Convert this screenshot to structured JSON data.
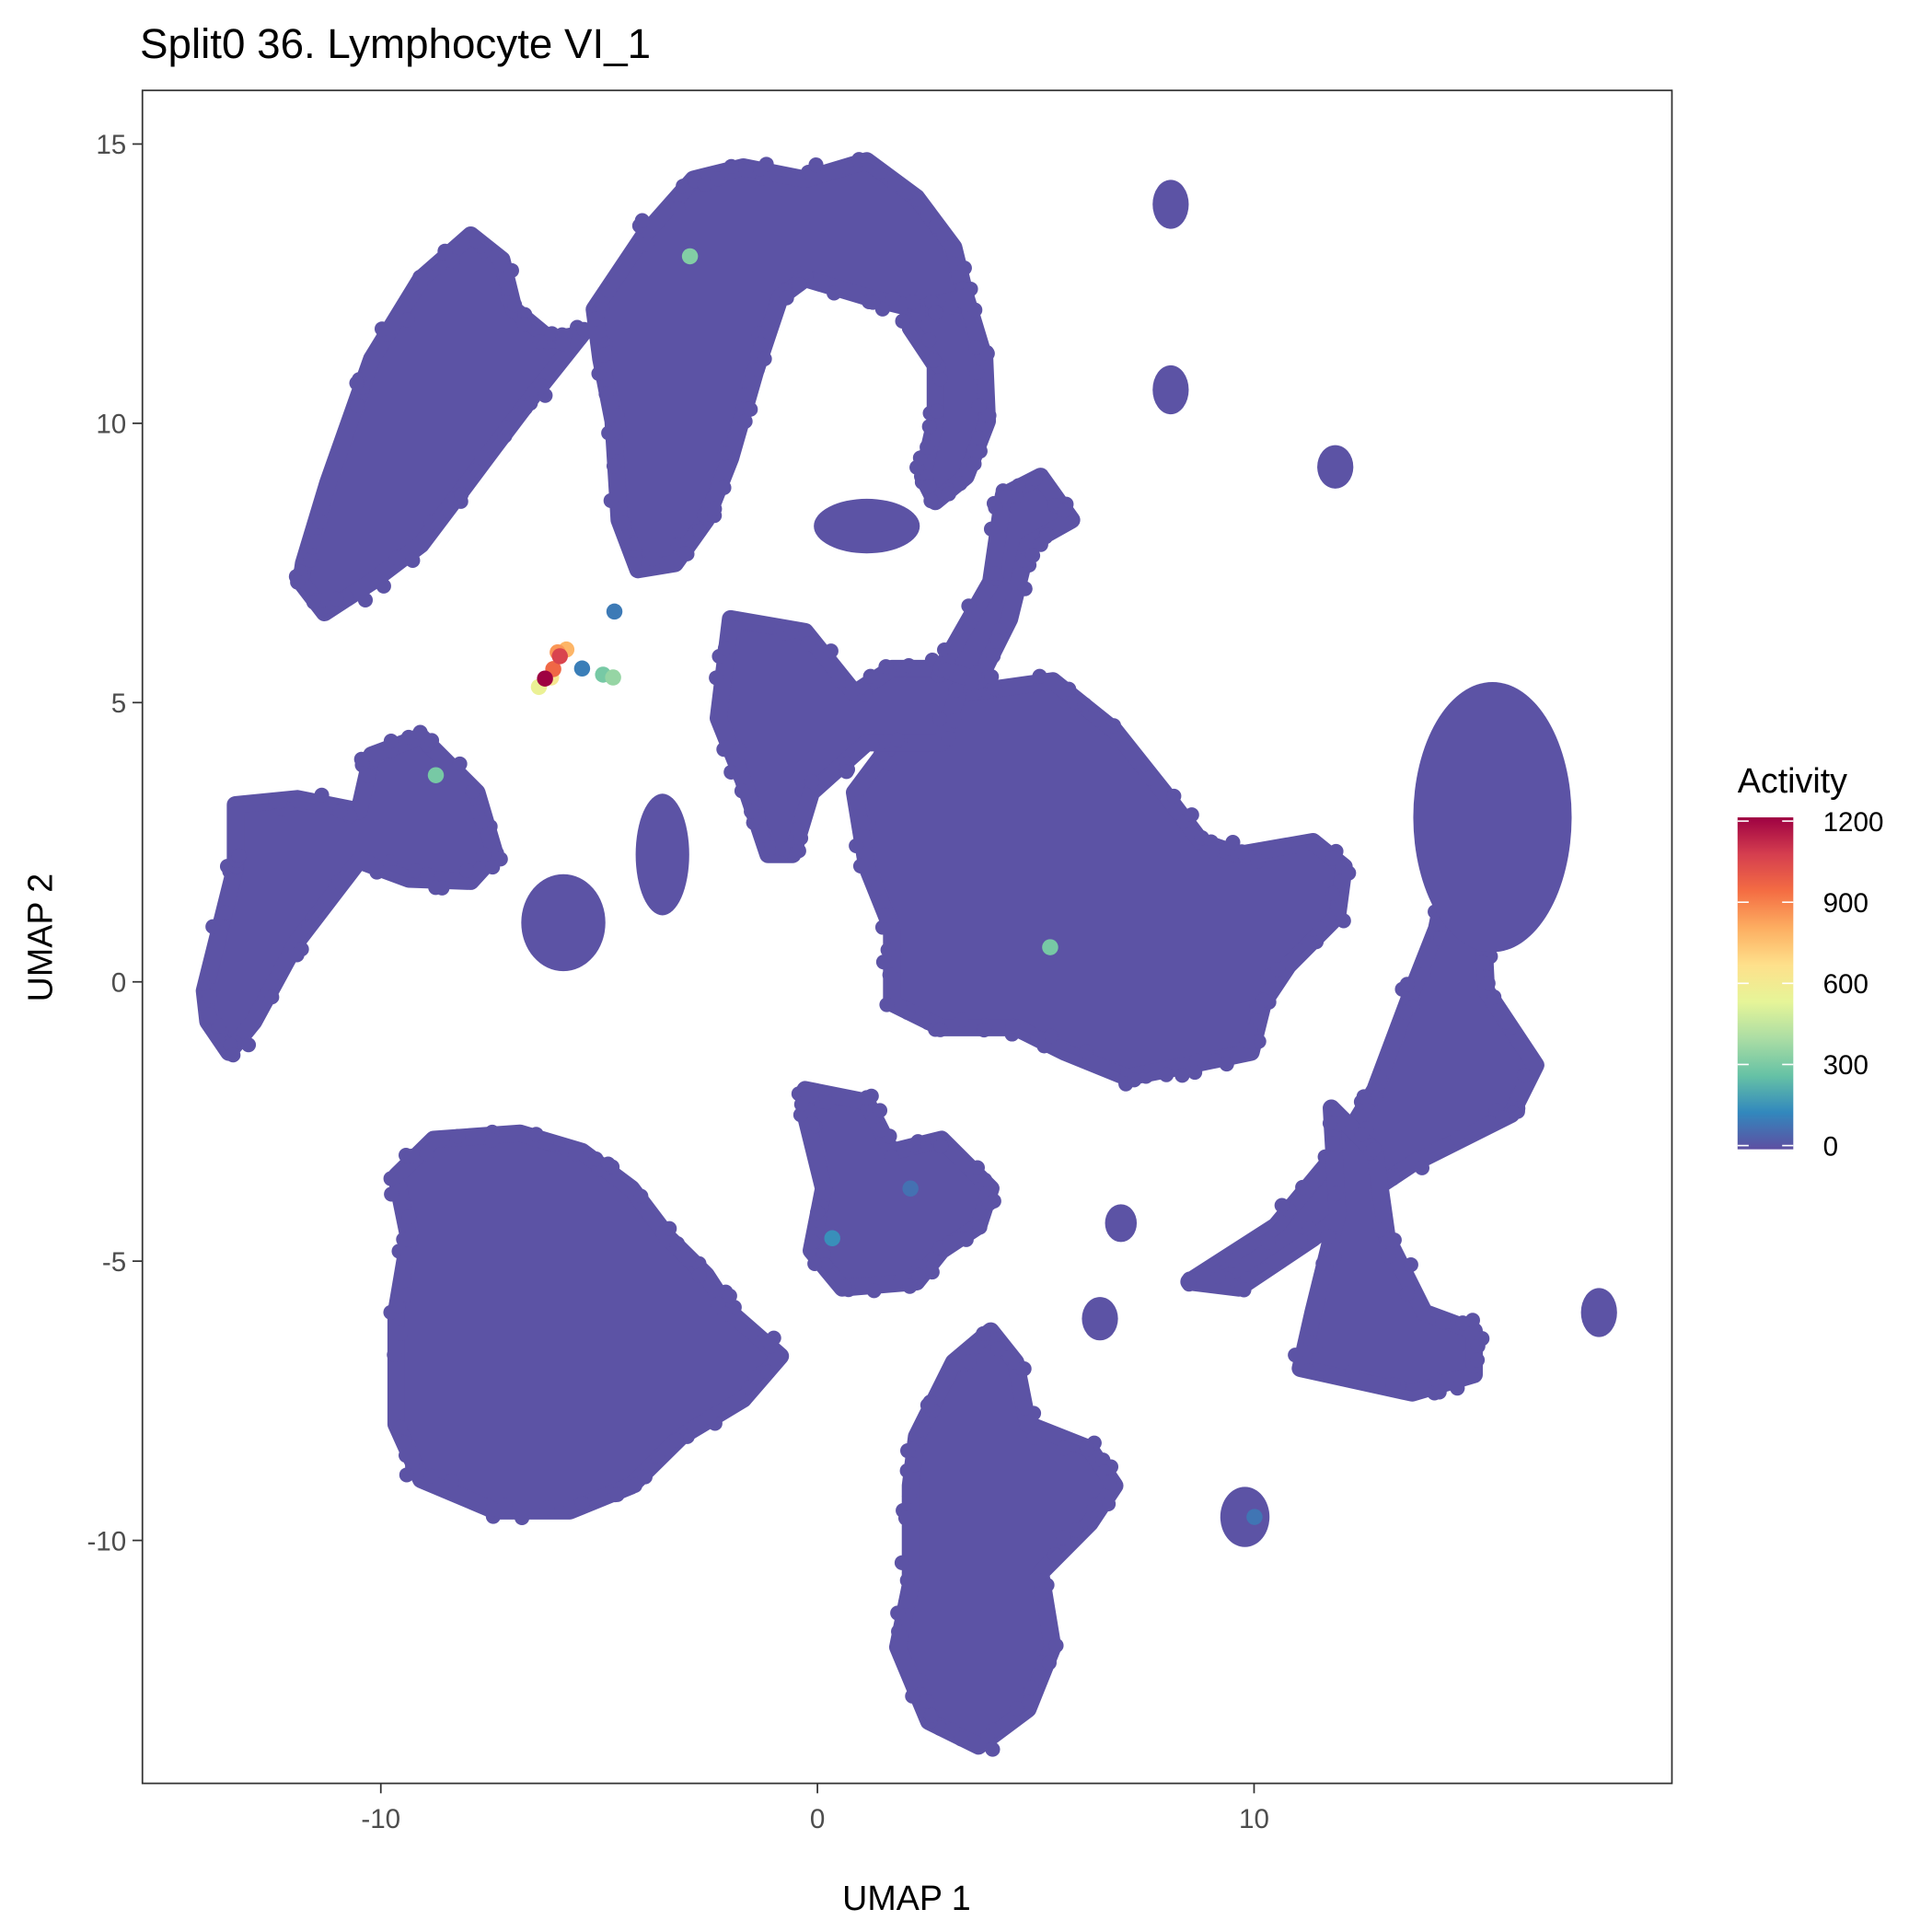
{
  "chart_data": {
    "type": "scatter",
    "title": "Split0 36. Lymphocyte VI_1",
    "xlabel": "UMAP 1",
    "ylabel": "UMAP 2",
    "xlim": [
      -15.46,
      19.57
    ],
    "ylim": [
      -14.35,
      15.96
    ],
    "xticks": [
      -10,
      0,
      10
    ],
    "yticks": [
      -10,
      -5,
      0,
      5,
      10,
      15
    ],
    "grid": false,
    "base_color": "#5C53A5",
    "legend": {
      "title": "Activity",
      "position": "right",
      "range": [
        0,
        1200
      ],
      "ticks": [
        0,
        300,
        600,
        900,
        1200
      ],
      "palette": [
        "#5E4FA2",
        "#3288BD",
        "#66C2A5",
        "#ABDDA4",
        "#E6F598",
        "#FEE08B",
        "#FDAE61",
        "#F46D43",
        "#D53E4F",
        "#9E0142"
      ]
    },
    "clusters": [
      {
        "name": "cluster-top-left",
        "poly": [
          [
            -11.77,
            7.49
          ],
          [
            -11.21,
            8.94
          ],
          [
            -10.21,
            11.15
          ],
          [
            -9.08,
            12.59
          ],
          [
            -7.94,
            13.37
          ],
          [
            -7.23,
            12.93
          ],
          [
            -6.95,
            12.04
          ],
          [
            -6.1,
            11.49
          ],
          [
            -5.39,
            11.6
          ],
          [
            -6.52,
            10.49
          ],
          [
            -7.38,
            9.6
          ],
          [
            -8.23,
            8.71
          ],
          [
            -9.08,
            7.83
          ],
          [
            -10.21,
            7.16
          ],
          [
            -11.29,
            6.61
          ],
          [
            -11.83,
            7.16
          ]
        ]
      },
      {
        "name": "cluster-top-middle",
        "poly": [
          [
            -5.11,
            12.04
          ],
          [
            -3.97,
            13.37
          ],
          [
            -2.84,
            14.37
          ],
          [
            -1.7,
            14.59
          ],
          [
            -0.28,
            14.37
          ],
          [
            1.13,
            14.7
          ],
          [
            2.27,
            14.04
          ],
          [
            3.12,
            13.15
          ],
          [
            3.4,
            12.26
          ],
          [
            2.27,
            12.04
          ],
          [
            1.13,
            12.26
          ],
          [
            -0.28,
            12.59
          ],
          [
            -0.85,
            12.26
          ],
          [
            -1.42,
            10.93
          ],
          [
            -1.99,
            9.38
          ],
          [
            -2.55,
            8.27
          ],
          [
            -3.26,
            7.49
          ],
          [
            -4.11,
            7.38
          ],
          [
            -4.54,
            8.27
          ],
          [
            -4.68,
            10.04
          ],
          [
            -4.96,
            11.15
          ]
        ]
      },
      {
        "name": "cluster-top-arc",
        "poly": [
          [
            2.27,
            12.04
          ],
          [
            3.4,
            12.26
          ],
          [
            3.83,
            11.15
          ],
          [
            3.89,
            10.04
          ],
          [
            3.4,
            9.05
          ],
          [
            2.7,
            8.6
          ],
          [
            2.41,
            9.05
          ],
          [
            2.7,
            10.04
          ],
          [
            2.7,
            11.04
          ],
          [
            2.13,
            11.71
          ]
        ]
      },
      {
        "name": "cluster-center",
        "poly": [
          [
            0.85,
            3.39
          ],
          [
            1.7,
            4.28
          ],
          [
            3.4,
            5.17
          ],
          [
            5.39,
            5.39
          ],
          [
            6.81,
            4.5
          ],
          [
            7.94,
            3.39
          ],
          [
            8.79,
            2.51
          ],
          [
            9.65,
            2.28
          ],
          [
            11.35,
            2.51
          ],
          [
            12.06,
            2.06
          ],
          [
            11.91,
            1.18
          ],
          [
            10.78,
            0.29
          ],
          [
            10.21,
            -0.38
          ],
          [
            9.93,
            -1.26
          ],
          [
            8.51,
            -1.49
          ],
          [
            7.09,
            -1.71
          ],
          [
            5.67,
            -1.26
          ],
          [
            4.54,
            -0.82
          ],
          [
            2.84,
            -0.82
          ],
          [
            1.7,
            -0.38
          ],
          [
            1.7,
            0.95
          ],
          [
            1.13,
            2.06
          ]
        ]
      },
      {
        "name": "cluster-right-strand",
        "poly": [
          [
            14.47,
            2.06
          ],
          [
            15.18,
            2.06
          ],
          [
            15.32,
            -0.16
          ],
          [
            16.45,
            -1.49
          ],
          [
            15.89,
            -2.37
          ],
          [
            13.62,
            -3.26
          ],
          [
            12.77,
            -3.7
          ],
          [
            11.35,
            -4.59
          ],
          [
            9.65,
            -5.48
          ],
          [
            8.51,
            -5.37
          ],
          [
            10.5,
            -4.37
          ],
          [
            11.91,
            -3.04
          ],
          [
            12.77,
            -1.93
          ],
          [
            13.62,
            -0.16
          ],
          [
            14.18,
            0.95
          ]
        ]
      },
      {
        "name": "cluster-right-lower",
        "poly": [
          [
            11.77,
            -2.26
          ],
          [
            12.77,
            -3.04
          ],
          [
            13.05,
            -4.59
          ],
          [
            13.9,
            -5.92
          ],
          [
            15.04,
            -6.25
          ],
          [
            15.04,
            -7.03
          ],
          [
            13.62,
            -7.36
          ],
          [
            11.06,
            -6.92
          ],
          [
            11.35,
            -5.92
          ],
          [
            11.91,
            -4.15
          ]
        ]
      },
      {
        "name": "cluster-bottom-left",
        "poly": [
          [
            -9.65,
            -3.48
          ],
          [
            -8.79,
            -2.82
          ],
          [
            -6.81,
            -2.71
          ],
          [
            -5.39,
            -3.04
          ],
          [
            -4.26,
            -3.7
          ],
          [
            -3.4,
            -4.59
          ],
          [
            -2.55,
            -5.25
          ],
          [
            -1.99,
            -5.92
          ],
          [
            -0.85,
            -6.7
          ],
          [
            -1.7,
            -7.47
          ],
          [
            -3.12,
            -8.14
          ],
          [
            -4.26,
            -9.02
          ],
          [
            -5.67,
            -9.47
          ],
          [
            -7.38,
            -9.47
          ],
          [
            -9.08,
            -8.91
          ],
          [
            -9.65,
            -7.92
          ],
          [
            -9.65,
            -5.92
          ],
          [
            -9.36,
            -4.59
          ]
        ]
      },
      {
        "name": "cluster-bottom-center",
        "poly": [
          [
            2.27,
            -8.14
          ],
          [
            3.12,
            -6.81
          ],
          [
            3.97,
            -6.25
          ],
          [
            4.54,
            -6.81
          ],
          [
            4.82,
            -7.92
          ],
          [
            6.24,
            -8.36
          ],
          [
            6.81,
            -9.02
          ],
          [
            6.24,
            -9.69
          ],
          [
            5.11,
            -10.58
          ],
          [
            5.39,
            -11.91
          ],
          [
            4.82,
            -13.02
          ],
          [
            3.69,
            -13.68
          ],
          [
            2.55,
            -13.24
          ],
          [
            1.84,
            -11.91
          ],
          [
            2.13,
            -10.8
          ],
          [
            2.13,
            -9.02
          ]
        ]
      },
      {
        "name": "cluster-middle-lower",
        "poly": [
          [
            -0.28,
            -1.93
          ],
          [
            1.13,
            -2.15
          ],
          [
            1.7,
            -3.04
          ],
          [
            2.84,
            -2.82
          ],
          [
            3.97,
            -3.7
          ],
          [
            3.69,
            -4.37
          ],
          [
            2.84,
            -4.81
          ],
          [
            2.27,
            -5.37
          ],
          [
            0.57,
            -5.48
          ],
          [
            -0.14,
            -4.81
          ],
          [
            0.14,
            -3.7
          ],
          [
            -0.28,
            -2.37
          ]
        ]
      },
      {
        "name": "cluster-left-long",
        "poly": [
          [
            -14.04,
            -0.16
          ],
          [
            -13.33,
            2.06
          ],
          [
            -13.33,
            3.17
          ],
          [
            -11.91,
            3.28
          ],
          [
            -10.5,
            3.06
          ],
          [
            -10.21,
            4.06
          ],
          [
            -9.08,
            4.39
          ],
          [
            -7.8,
            3.39
          ],
          [
            -7.38,
            2.28
          ],
          [
            -7.94,
            1.8
          ],
          [
            -9.36,
            1.84
          ],
          [
            -10.5,
            2.17
          ],
          [
            -11.91,
            0.73
          ],
          [
            -12.91,
            -0.71
          ],
          [
            -13.48,
            -1.26
          ],
          [
            -13.96,
            -0.71
          ]
        ]
      },
      {
        "name": "cluster-center-upper",
        "poly": [
          [
            -1.99,
            6.5
          ],
          [
            -0.28,
            6.27
          ],
          [
            0.85,
            5.17
          ],
          [
            1.7,
            5.61
          ],
          [
            3.4,
            5.61
          ],
          [
            2.84,
            4.28
          ],
          [
            1.13,
            4.28
          ],
          [
            -0.14,
            3.39
          ],
          [
            -0.57,
            2.28
          ],
          [
            -1.13,
            2.28
          ],
          [
            -1.7,
            3.61
          ],
          [
            -2.27,
            4.72
          ]
        ]
      },
      {
        "name": "cluster-center-stem",
        "poly": [
          [
            2.84,
            5.61
          ],
          [
            3.97,
            7.16
          ],
          [
            4.26,
            8.71
          ],
          [
            5.11,
            9.05
          ],
          [
            5.82,
            8.27
          ],
          [
            4.82,
            7.83
          ],
          [
            4.4,
            6.5
          ],
          [
            3.69,
            5.39
          ]
        ]
      }
    ],
    "blobs": [
      {
        "name": "cluster-right-top",
        "center": [
          15.46,
          2.95
        ],
        "radius": [
          1.7,
          2.33
        ]
      },
      {
        "name": "cluster-small-left",
        "center": [
          -5.82,
          1.06
        ],
        "radius": [
          0.85,
          0.78
        ]
      },
      {
        "name": "cluster-small-diagonal",
        "center": [
          -3.55,
          2.28
        ],
        "radius": [
          0.5,
          1.0
        ]
      },
      {
        "name": "cluster-small-mid",
        "center": [
          1.13,
          8.16
        ],
        "radius": [
          1.1,
          0.4
        ]
      },
      {
        "name": "island-1",
        "center": [
          8.09,
          13.92
        ],
        "radius": [
          0.3,
          0.35
        ]
      },
      {
        "name": "island-2",
        "center": [
          8.09,
          10.6
        ],
        "radius": [
          0.3,
          0.35
        ]
      },
      {
        "name": "island-3",
        "center": [
          11.86,
          9.22
        ],
        "radius": [
          0.3,
          0.3
        ]
      },
      {
        "name": "island-4",
        "center": [
          17.9,
          -5.92
        ],
        "radius": [
          0.3,
          0.35
        ]
      },
      {
        "name": "island-5",
        "center": [
          9.79,
          -9.58
        ],
        "radius": [
          0.45,
          0.45
        ]
      },
      {
        "name": "island-6",
        "center": [
          6.47,
          -6.03
        ],
        "radius": [
          0.3,
          0.3
        ]
      },
      {
        "name": "island-7",
        "center": [
          6.95,
          -4.32
        ],
        "radius": [
          0.25,
          0.25
        ]
      }
    ],
    "highlight_points": [
      {
        "x": -2.92,
        "y": 12.99,
        "value": 320
      },
      {
        "x": -8.74,
        "y": 3.7,
        "value": 300
      },
      {
        "x": 5.33,
        "y": 0.62,
        "value": 300
      },
      {
        "x": -4.65,
        "y": 6.63,
        "value": 100
      },
      {
        "x": -5.39,
        "y": 5.61,
        "value": 110
      },
      {
        "x": -4.91,
        "y": 5.5,
        "value": 300
      },
      {
        "x": -4.68,
        "y": 5.45,
        "value": 360
      },
      {
        "x": -6.38,
        "y": 5.28,
        "value": 560
      },
      {
        "x": -6.1,
        "y": 5.45,
        "value": 620
      },
      {
        "x": -5.75,
        "y": 5.95,
        "value": 780
      },
      {
        "x": -5.95,
        "y": 5.9,
        "value": 850
      },
      {
        "x": -6.05,
        "y": 5.6,
        "value": 950
      },
      {
        "x": -5.9,
        "y": 5.83,
        "value": 1050
      },
      {
        "x": -6.24,
        "y": 5.43,
        "value": 1200
      },
      {
        "x": 10.01,
        "y": -9.58,
        "value": 90
      },
      {
        "x": 0.34,
        "y": -4.59,
        "value": 150
      },
      {
        "x": 2.13,
        "y": -3.7,
        "value": 80
      }
    ]
  }
}
